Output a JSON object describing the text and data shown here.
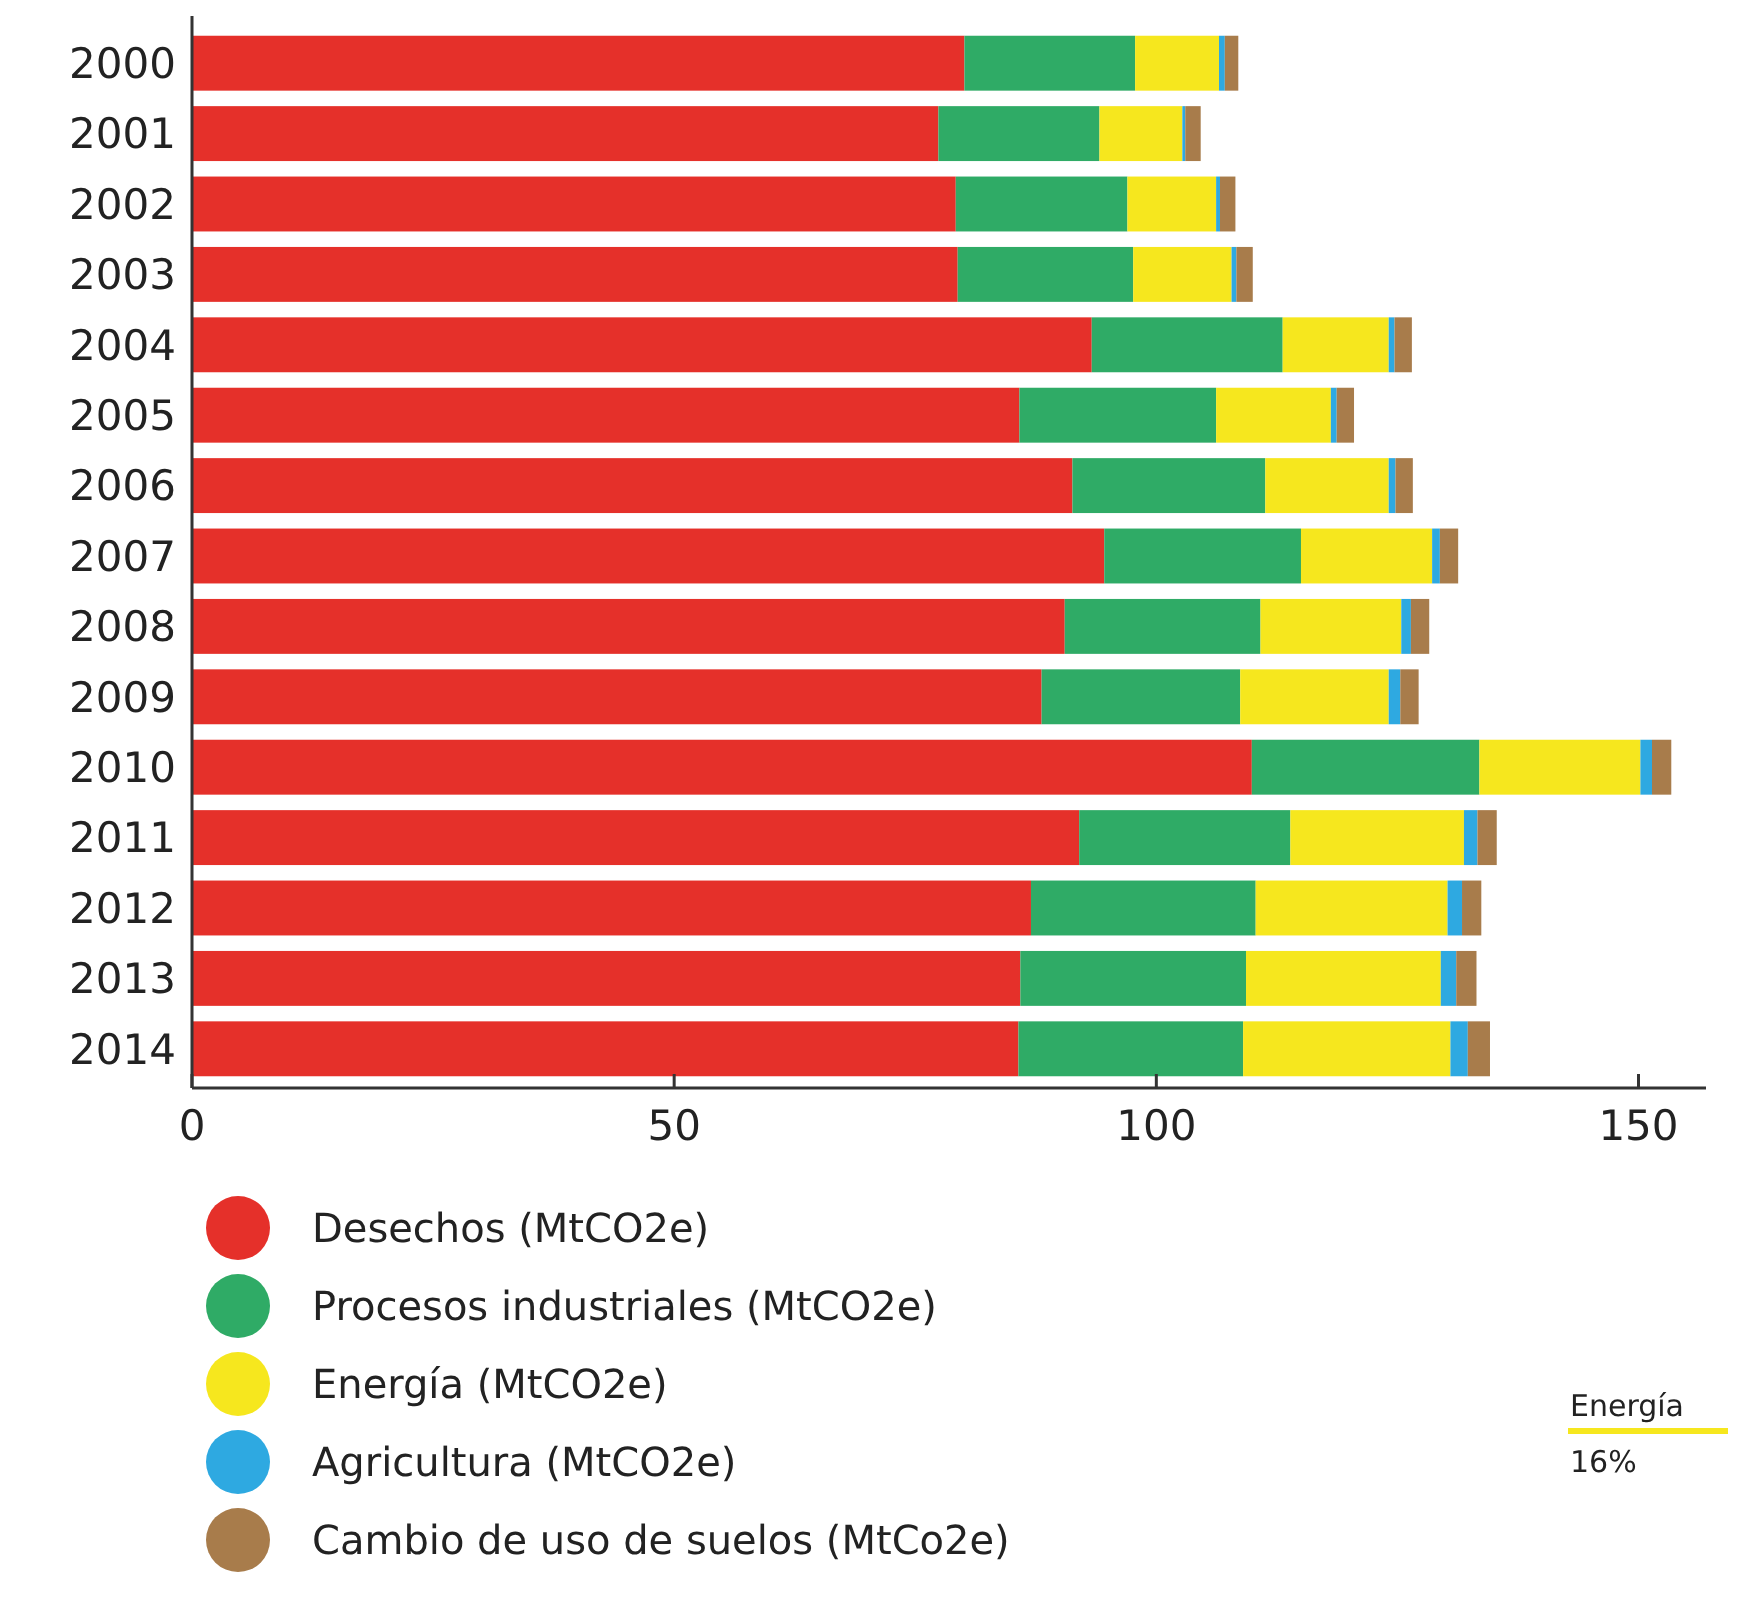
{
  "chart_data": {
    "type": "bar",
    "orientation": "horizontal",
    "stacked": true,
    "categories": [
      "2000",
      "2001",
      "2002",
      "2003",
      "2004",
      "2005",
      "2006",
      "2007",
      "2008",
      "2009",
      "2010",
      "2011",
      "2012",
      "2013",
      "2014"
    ],
    "series": [
      {
        "name": "Desechos (MtCO2e)",
        "color": "#e5302a",
        "values": [
          80.1,
          77.4,
          79.2,
          79.4,
          93.3,
          85.8,
          91.3,
          94.6,
          90.5,
          88.1,
          109.9,
          92.0,
          87.0,
          85.9,
          85.7
        ]
      },
      {
        "name": "Procesos industriales (MtCO2e)",
        "color": "#2fab66",
        "values": [
          17.7,
          16.7,
          17.8,
          18.2,
          19.8,
          20.4,
          20.0,
          20.4,
          20.3,
          20.6,
          23.6,
          21.9,
          23.3,
          23.4,
          23.3
        ]
      },
      {
        "name": "Energía (MtCO2e)",
        "color": "#f6e71e",
        "values": [
          8.7,
          8.6,
          9.2,
          10.2,
          11.0,
          11.9,
          12.8,
          13.6,
          14.6,
          15.4,
          16.7,
          18.0,
          19.9,
          20.2,
          21.5
        ]
      },
      {
        "name": "Agricultura (MtCO2e)",
        "color": "#2ea9e1",
        "values": [
          0.6,
          0.3,
          0.4,
          0.5,
          0.6,
          0.6,
          0.7,
          0.8,
          1.0,
          1.2,
          1.2,
          1.4,
          1.5,
          1.6,
          1.8
        ]
      },
      {
        "name": "Cambio de uso de suelos (MtCo2e)",
        "color": "#a87c4b",
        "values": [
          1.4,
          1.6,
          1.6,
          1.7,
          1.8,
          1.8,
          1.8,
          1.9,
          1.9,
          1.9,
          2.0,
          2.0,
          2.0,
          2.1,
          2.3
        ]
      }
    ],
    "xlim": [
      0,
      157
    ],
    "xticks": [
      0,
      50,
      100,
      150
    ],
    "grid": false,
    "legend": "bottom",
    "annotations": [
      "Energía",
      "16%"
    ]
  }
}
